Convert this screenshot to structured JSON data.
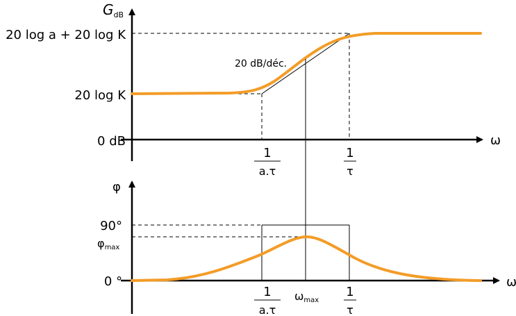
{
  "gain_plot": {
    "y_axis_symbol": "G",
    "y_axis_subscript": "dB",
    "x_axis_symbol": "ω",
    "level_high": "20 log a + 20 log K",
    "level_low": "20 log K",
    "level_zero": "0 dB",
    "slope": "20 dB/déc.",
    "break1_num": "1",
    "break1_den": "a.τ",
    "break2_num": "1",
    "break2_den": "τ"
  },
  "phase_plot": {
    "y_axis_symbol": "φ",
    "x_axis_symbol": "ω",
    "level_90": "90°",
    "phi_max_symbol": "φ",
    "phi_max_sub": "max",
    "level_zero": "0 °",
    "break1_num": "1",
    "break1_den": "a.τ",
    "omega_max_symbol": "ω",
    "omega_max_sub": "max",
    "break2_num": "1",
    "break2_den": "τ"
  },
  "colors": {
    "curve": "#f39c27",
    "axes": "#000000"
  }
}
